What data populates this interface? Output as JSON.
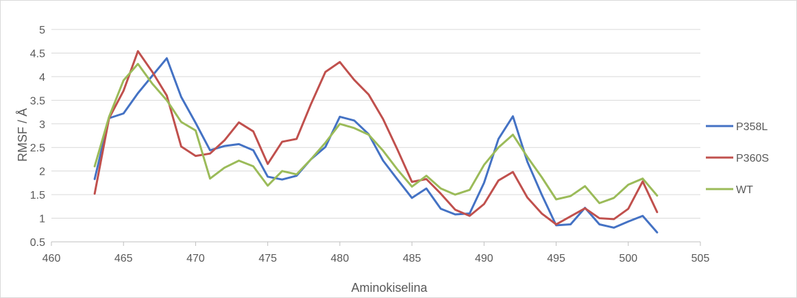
{
  "chart_data": {
    "type": "line",
    "title": "",
    "xlabel": "Aminokiselina",
    "ylabel": "RMSF / Å",
    "xlim": [
      460,
      505
    ],
    "ylim": [
      0.5,
      5
    ],
    "x_ticks": [
      "460",
      "465",
      "470",
      "475",
      "480",
      "485",
      "490",
      "495",
      "500",
      "505"
    ],
    "y_ticks": [
      "0.5",
      "1",
      "1.5",
      "2",
      "2.5",
      "3",
      "3.5",
      "4",
      "4.5",
      "5"
    ],
    "grid": "horizontal",
    "legend_position": "right",
    "x": [
      463,
      464,
      465,
      466,
      467,
      468,
      469,
      470,
      471,
      472,
      473,
      474,
      475,
      476,
      477,
      478,
      479,
      480,
      481,
      482,
      483,
      484,
      485,
      486,
      487,
      488,
      489,
      490,
      491,
      492,
      493,
      494,
      495,
      496,
      497,
      498,
      499,
      500,
      501,
      502
    ],
    "series": [
      {
        "name": "P358L",
        "color": "#4472c4",
        "values": [
          1.83,
          3.12,
          3.22,
          3.65,
          4.02,
          4.39,
          3.57,
          3.02,
          2.44,
          2.53,
          2.57,
          2.44,
          1.88,
          1.82,
          1.9,
          2.25,
          2.51,
          3.15,
          3.07,
          2.78,
          2.22,
          1.82,
          1.43,
          1.63,
          1.2,
          1.08,
          1.1,
          1.75,
          2.68,
          3.16,
          2.2,
          1.5,
          0.85,
          0.87,
          1.22,
          0.87,
          0.8,
          0.93,
          1.05,
          0.7
        ]
      },
      {
        "name": "P360S",
        "color": "#c0504d",
        "values": [
          1.52,
          3.12,
          3.7,
          4.54,
          4.1,
          3.6,
          2.52,
          2.32,
          2.37,
          2.65,
          3.03,
          2.84,
          2.15,
          2.62,
          2.68,
          3.42,
          4.1,
          4.31,
          3.93,
          3.62,
          3.1,
          2.45,
          1.77,
          1.83,
          1.52,
          1.18,
          1.05,
          1.3,
          1.8,
          1.98,
          1.44,
          1.1,
          0.87,
          1.04,
          1.21,
          1.0,
          0.98,
          1.2,
          1.78,
          1.13
        ]
      },
      {
        "name": "WT",
        "color": "#9bbb59",
        "values": [
          2.1,
          3.15,
          3.92,
          4.27,
          3.85,
          3.5,
          3.04,
          2.86,
          1.84,
          2.07,
          2.22,
          2.1,
          1.69,
          2.0,
          1.93,
          2.25,
          2.6,
          3.0,
          2.91,
          2.77,
          2.43,
          2.03,
          1.67,
          1.9,
          1.63,
          1.5,
          1.6,
          2.13,
          2.5,
          2.77,
          2.3,
          1.87,
          1.4,
          1.47,
          1.68,
          1.32,
          1.43,
          1.71,
          1.84,
          1.48
        ]
      }
    ]
  }
}
